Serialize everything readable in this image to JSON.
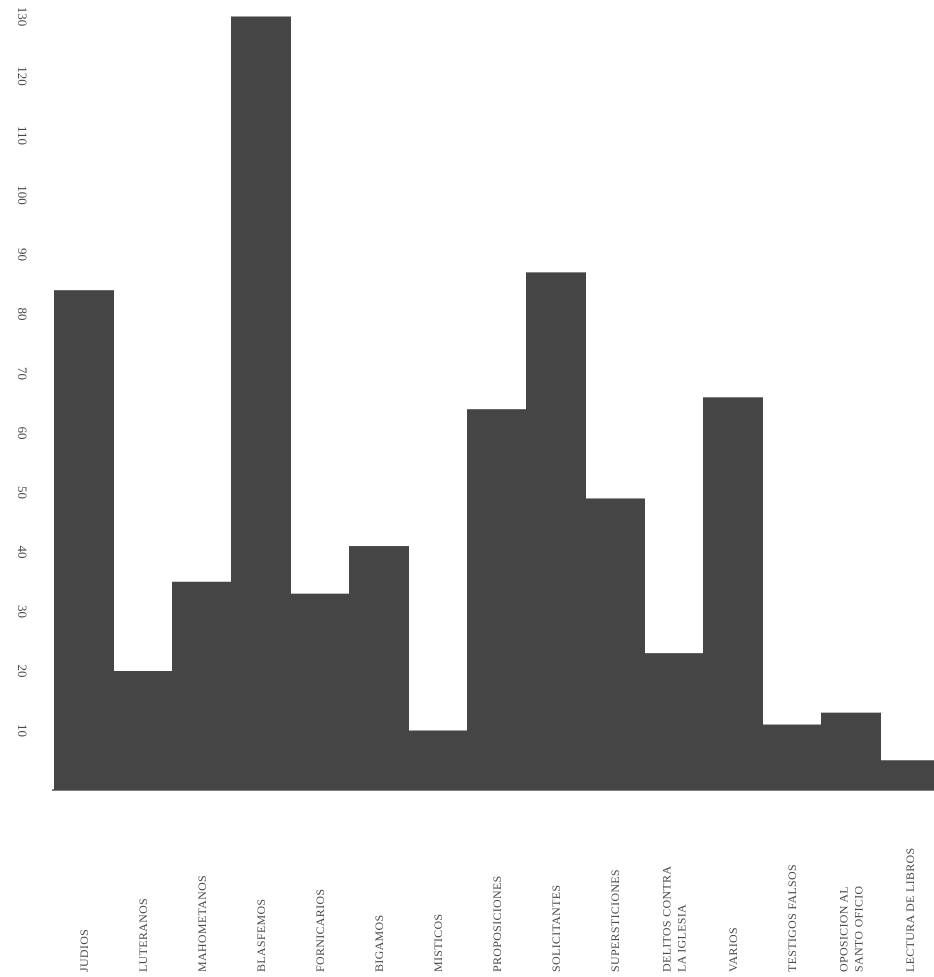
{
  "chart_data": {
    "type": "bar",
    "orientation": "vertical, page rotated",
    "categories": [
      [
        "JUDIOS"
      ],
      [
        "LUTERANOS"
      ],
      [
        "MAHOMETANOS"
      ],
      [
        "BLASFEMOS"
      ],
      [
        "FORNICARIOS"
      ],
      [
        "BIGAMOS"
      ],
      [
        "MISTICOS"
      ],
      [
        "PROPOSICIONES"
      ],
      [
        "SOLICITANTES"
      ],
      [
        "SUPERSTICIONES"
      ],
      [
        "DELITOS CONTRA",
        "LA IGLESIA"
      ],
      [
        "VARIOS"
      ],
      [
        "TESTIGOS FALSOS"
      ],
      [
        "OPOSICION AL",
        "SANTO OFICIO"
      ],
      [
        "LECTURA DE LIBROS"
      ]
    ],
    "values": [
      84,
      20,
      35,
      130,
      33,
      41,
      10,
      64,
      87,
      49,
      23,
      66,
      11,
      13,
      5
    ],
    "yticks": [
      10,
      20,
      30,
      40,
      50,
      60,
      70,
      80,
      90,
      100,
      110,
      120,
      130
    ],
    "ylim": [
      0,
      132
    ],
    "title": "",
    "xlabel": "",
    "ylabel": "",
    "grid": false,
    "bar_color": "#454545",
    "text_color": "#4a4a4a"
  }
}
